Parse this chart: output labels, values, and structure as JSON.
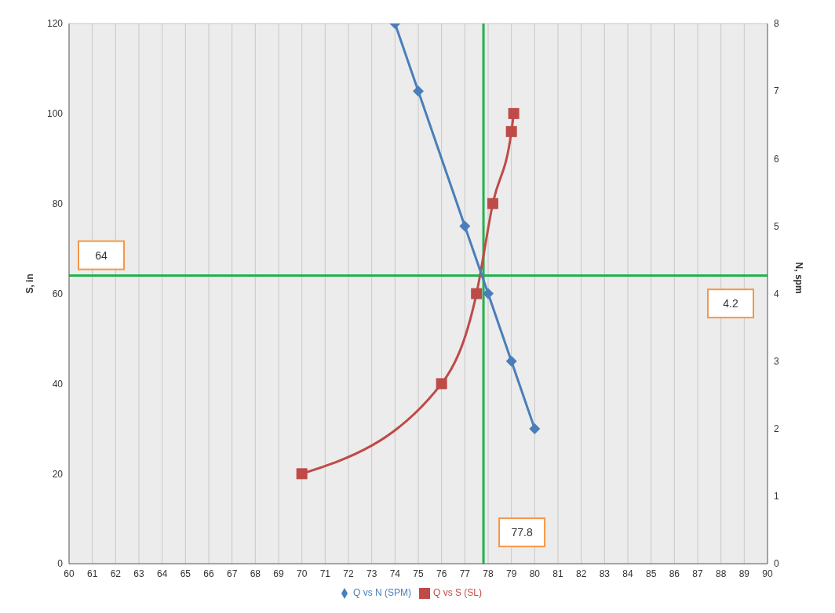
{
  "chart_data": {
    "type": "line",
    "ylabel": "S, in",
    "y2label": "N, spm",
    "xlim": [
      60,
      90
    ],
    "xticks": [
      60,
      61,
      62,
      63,
      64,
      65,
      66,
      67,
      68,
      69,
      70,
      71,
      72,
      73,
      74,
      75,
      76,
      77,
      78,
      79,
      80,
      81,
      82,
      83,
      84,
      85,
      86,
      87,
      88,
      89,
      90
    ],
    "ylim": [
      0,
      120
    ],
    "yticks": [
      0,
      20,
      40,
      60,
      80,
      100,
      120
    ],
    "y2lim": [
      0,
      8
    ],
    "y2ticks": [
      0,
      1,
      2,
      3,
      4,
      5,
      6,
      7,
      8
    ],
    "grid": true,
    "legend": "bottom",
    "series": [
      {
        "name": "Q vs S (SL)",
        "color": "#be4b48",
        "marker": "square",
        "x": [
          70,
          76,
          77.5,
          78.2,
          79,
          79.1
        ],
        "values": [
          20,
          40,
          60,
          80,
          96,
          100
        ]
      },
      {
        "name": "Q vs N (SPM)",
        "color": "#4a7ebb",
        "marker": "diamond",
        "axis": "y2",
        "x": [
          74,
          75,
          77,
          78,
          79,
          80
        ],
        "values": [
          8,
          7,
          5,
          4,
          3,
          2
        ]
      }
    ],
    "ref_lines": [
      {
        "axis": "y",
        "value": 64,
        "label": "64",
        "color": "#22b14c"
      },
      {
        "axis": "x",
        "value": 77.8,
        "label": "77.8",
        "color": "#22b14c"
      }
    ],
    "annotations": [
      "4.2"
    ]
  }
}
